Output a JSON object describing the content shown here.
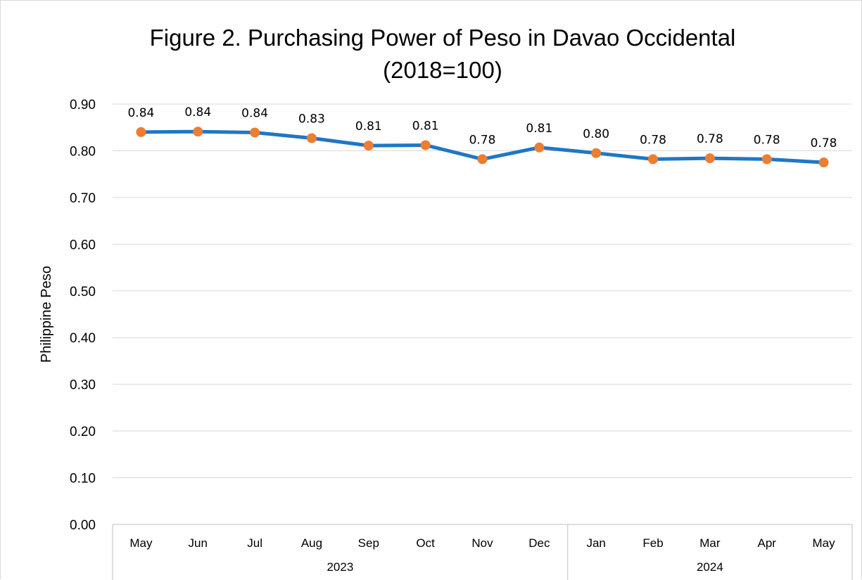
{
  "chart_data": {
    "type": "line",
    "title": [
      "Figure 2. Purchasing Power of Peso in Davao Occidental",
      "(2018=100)"
    ],
    "ylabel": "Philippine Peso",
    "xlabel": "",
    "ylim": [
      0,
      0.9
    ],
    "yticks": [
      "0.00",
      "0.10",
      "0.20",
      "0.30",
      "0.40",
      "0.50",
      "0.60",
      "0.70",
      "0.80",
      "0.90"
    ],
    "categories": [
      "May",
      "Jun",
      "Jul",
      "Aug",
      "Sep",
      "Oct",
      "Nov",
      "Dec",
      "Jan",
      "Feb",
      "Mar",
      "Apr",
      "May"
    ],
    "groups": [
      {
        "label": "2023",
        "count": 8
      },
      {
        "label": "2024",
        "count": 5
      }
    ],
    "series": [
      {
        "values": [
          0.84,
          0.841,
          0.839,
          0.827,
          0.811,
          0.812,
          0.782,
          0.807,
          0.795,
          0.782,
          0.784,
          0.782,
          0.775
        ],
        "labels": [
          "0.84",
          "0.84",
          "0.84",
          "0.83",
          "0.81",
          "0.81",
          "0.78",
          "0.81",
          "0.80",
          "0.78",
          "0.78",
          "0.78",
          "0.78"
        ],
        "line_color": "#1f77c4",
        "marker_color": "#ed7d31"
      }
    ],
    "grid": true,
    "legend": "none"
  }
}
